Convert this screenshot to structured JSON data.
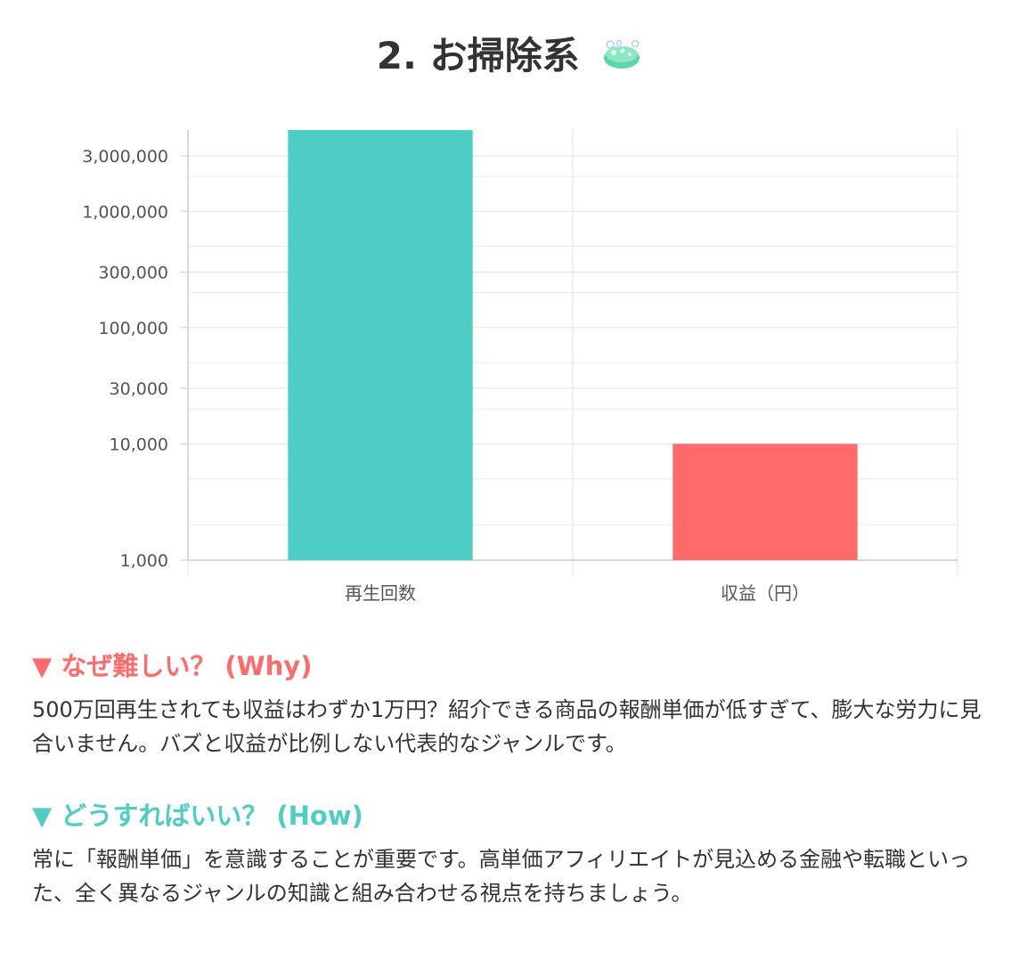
{
  "title": "2. お掃除系",
  "title_icon": "cleaning-sponge-icon",
  "colors": {
    "teal": "#4ecdc4",
    "coral": "#ff6b6b",
    "text": "#333333",
    "grid": "#e5e5e5"
  },
  "chart_data": {
    "type": "bar",
    "y_scale": "log",
    "ylim": [
      1000,
      5000000
    ],
    "yticks": [
      {
        "value": 3000000,
        "label": "3,000,000"
      },
      {
        "value": 1000000,
        "label": "1,000,000"
      },
      {
        "value": 300000,
        "label": "300,000"
      },
      {
        "value": 100000,
        "label": "100,000"
      },
      {
        "value": 30000,
        "label": "30,000"
      },
      {
        "value": 10000,
        "label": "10,000"
      },
      {
        "value": 1000,
        "label": "1,000"
      }
    ],
    "categories": [
      "再生回数",
      "収益（円）"
    ],
    "values": [
      5000000,
      10000
    ],
    "bar_colors": [
      "#4ecdc4",
      "#ff6b6b"
    ],
    "grid": true,
    "legend": "none"
  },
  "why": {
    "marker": "▼",
    "heading": "なぜ難しい？ (Why)",
    "body": "500万回再生されても収益はわずか1万円？紹介できる商品の報酬単価が低すぎて、膨大な労力に見合いません。バズと収益が比例しない代表的なジャンルです。"
  },
  "how": {
    "marker": "▼",
    "heading": "どうすればいい？ (How)",
    "body": "常に「報酬単価」を意識することが重要です。高単価アフィリエイトが見込める金融や転職といった、全く異なるジャンルの知識と組み合わせる視点を持ちましょう。"
  }
}
